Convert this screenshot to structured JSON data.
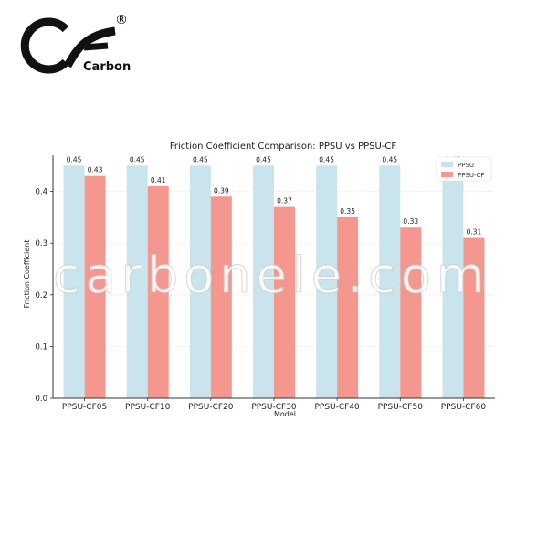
{
  "brand": {
    "logo_letters": "CF",
    "logo_word": "Carbon",
    "registered": "®"
  },
  "watermark": "carbonele.com",
  "colors": {
    "ppsu": "#c9e4ec",
    "ppsu_cf": "#f4978e",
    "axis": "#333333",
    "grid": "#e6e6e6"
  },
  "chart_data": {
    "type": "bar",
    "title": "Friction Coefficient Comparison: PPSU vs PPSU-CF",
    "xlabel": "Model",
    "ylabel": "Friction Coefficient",
    "categories": [
      "PPSU-CF05",
      "PPSU-CF10",
      "PPSU-CF20",
      "PPSU-CF30",
      "PPSU-CF40",
      "PPSU-CF50",
      "PPSU-CF60"
    ],
    "series": [
      {
        "name": "PPSU",
        "values": [
          0.45,
          0.45,
          0.45,
          0.45,
          0.45,
          0.45,
          0.45
        ]
      },
      {
        "name": "PPSU-CF",
        "values": [
          0.43,
          0.41,
          0.39,
          0.37,
          0.35,
          0.33,
          0.31
        ]
      }
    ],
    "ylim": [
      0,
      0.47
    ],
    "yticks": [
      0.0,
      0.1,
      0.2,
      0.3,
      0.4
    ],
    "legend": "top-right",
    "grid": true
  }
}
